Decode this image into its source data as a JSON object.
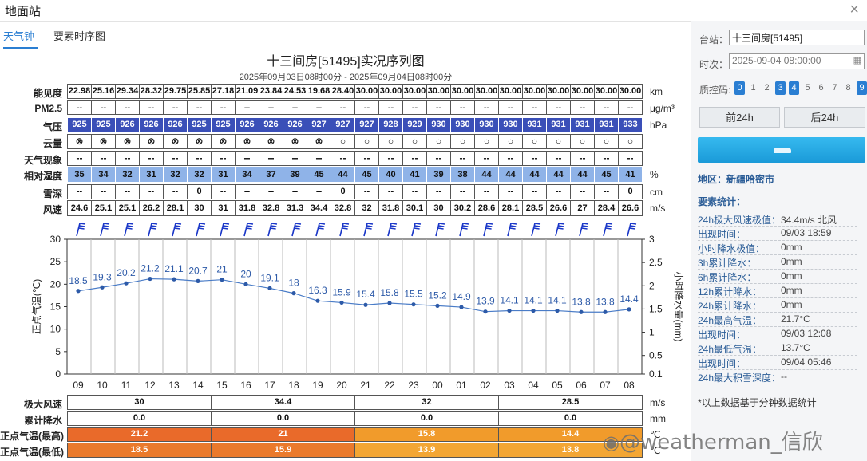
{
  "window": {
    "title": "地面站"
  },
  "tabs": [
    {
      "label": "天气钟"
    },
    {
      "label": "要素时序图"
    }
  ],
  "chart_title": "十三间房[51495]实况序列图",
  "chart_subtitle": "2025年09月03日08时00分 - 2025年09月04日08时00分",
  "table": {
    "visibility": {
      "label": "能见度",
      "unit": "km",
      "values": [
        "22.98",
        "25.16",
        "29.34",
        "28.32",
        "29.75",
        "25.85",
        "27.18",
        "21.09",
        "23.84",
        "24.53",
        "19.68",
        "28.40",
        "30.00",
        "30.00",
        "30.00",
        "30.00",
        "30.00",
        "30.00",
        "30.00",
        "30.00",
        "30.00",
        "30.00",
        "30.00",
        "30.00"
      ]
    },
    "pm25": {
      "label": "PM2.5",
      "unit": "μg/m³",
      "values": [
        "--",
        "--",
        "--",
        "--",
        "--",
        "--",
        "--",
        "--",
        "--",
        "--",
        "--",
        "--",
        "--",
        "--",
        "--",
        "--",
        "--",
        "--",
        "--",
        "--",
        "--",
        "--",
        "--",
        "--"
      ]
    },
    "pressure": {
      "label": "气压",
      "unit": "hPa",
      "values": [
        "925",
        "925",
        "926",
        "926",
        "926",
        "925",
        "925",
        "926",
        "926",
        "926",
        "927",
        "927",
        "927",
        "928",
        "929",
        "930",
        "930",
        "930",
        "930",
        "931",
        "931",
        "931",
        "931",
        "933"
      ]
    },
    "cloud": {
      "label": "云量",
      "unit": "",
      "values": [
        "⊗",
        "⊗",
        "⊗",
        "⊗",
        "⊗",
        "⊗",
        "⊗",
        "⊗",
        "⊗",
        "⊗",
        "⊗",
        "○",
        "○",
        "○",
        "○",
        "○",
        "○",
        "○",
        "○",
        "○",
        "○",
        "○",
        "○",
        "○"
      ]
    },
    "weather": {
      "label": "天气现象",
      "unit": "",
      "values": [
        "--",
        "--",
        "--",
        "--",
        "--",
        "--",
        "--",
        "--",
        "--",
        "--",
        "--",
        "--",
        "--",
        "--",
        "--",
        "--",
        "--",
        "--",
        "--",
        "--",
        "--",
        "--",
        "--",
        "--"
      ]
    },
    "humidity": {
      "label": "相对湿度",
      "unit": "%",
      "values": [
        "35",
        "34",
        "32",
        "31",
        "32",
        "32",
        "31",
        "34",
        "37",
        "39",
        "45",
        "44",
        "45",
        "40",
        "41",
        "39",
        "38",
        "44",
        "44",
        "44",
        "44",
        "44",
        "45",
        "41"
      ]
    },
    "snow": {
      "label": "雪深",
      "unit": "cm",
      "values": [
        "--",
        "--",
        "--",
        "--",
        "--",
        "0",
        "--",
        "--",
        "--",
        "--",
        "--",
        "0",
        "--",
        "--",
        "--",
        "--",
        "--",
        "--",
        "--",
        "--",
        "--",
        "--",
        "--",
        "0"
      ]
    },
    "wind": {
      "label": "风速",
      "unit": "m/s",
      "values": [
        "24.6",
        "25.1",
        "25.1",
        "26.2",
        "28.1",
        "30",
        "31",
        "31.8",
        "32.8",
        "31.3",
        "34.4",
        "32.8",
        "32",
        "31.8",
        "30.1",
        "30",
        "30.2",
        "28.6",
        "28.1",
        "28.5",
        "26.6",
        "27",
        "28.4",
        "26.6"
      ]
    }
  },
  "chart_data": {
    "type": "line",
    "x": [
      "09",
      "10",
      "11",
      "12",
      "13",
      "14",
      "15",
      "16",
      "17",
      "18",
      "19",
      "20",
      "21",
      "22",
      "23",
      "00",
      "01",
      "02",
      "03",
      "04",
      "05",
      "06",
      "07",
      "08"
    ],
    "series": [
      {
        "values": [
          18.5,
          19.3,
          20.2,
          21.2,
          21.1,
          20.7,
          21,
          20,
          19.1,
          18,
          16.3,
          15.9,
          15.4,
          15.8,
          15.5,
          15.2,
          14.9,
          13.9,
          14.1,
          14.1,
          14.1,
          13.8,
          13.8,
          14.4
        ]
      }
    ],
    "ylabel": "正点气温(℃)",
    "ylim": [
      0,
      30
    ],
    "yticks": [
      "30",
      "25",
      "20",
      "15",
      "10",
      "5",
      "0"
    ],
    "y2label": "小时降水量(mm)",
    "y2lim": [
      0.1,
      3
    ],
    "y2ticks": [
      "3",
      "2.5",
      "2",
      "1.5",
      "1",
      "0.5",
      "0.1"
    ],
    "wind_barbs": true,
    "grid": true,
    "color": "#4a7cc7"
  },
  "summary": {
    "gust": {
      "label": "极大风速",
      "unit": "m/s",
      "values": [
        "30",
        "34.4",
        "32",
        "28.5"
      ]
    },
    "precip": {
      "label": "累计降水",
      "unit": "mm",
      "values": [
        "0.0",
        "0.0",
        "0.0",
        "0.0"
      ]
    },
    "tmax": {
      "label": "正点气温(最高)",
      "unit": "℃",
      "values": [
        "21.2",
        "21",
        "15.8",
        "14.4"
      ]
    },
    "tmin": {
      "label": "正点气温(最低)",
      "unit": "℃",
      "values": [
        "18.5",
        "15.9",
        "13.9",
        "13.8"
      ]
    }
  },
  "sidebar": {
    "station_label": "台站：",
    "station_value": "十三间房[51495]",
    "time_label": "时次：",
    "time_value": "2025-09-04 08:00:00",
    "qc_label": "质控码:",
    "qc_codes": [
      "0",
      "1",
      "2",
      "3",
      "4",
      "5",
      "6",
      "7",
      "8",
      "9"
    ],
    "qc_selected": [
      "0",
      "3",
      "4",
      "9"
    ],
    "prev_label": "前24h",
    "next_label": "后24h",
    "region": "地区：新疆哈密市",
    "stats_title": "要素统计：",
    "stats": [
      {
        "label": "24h极大风速极值：",
        "value": "34.4m/s 北风"
      },
      {
        "label": "出现时间：",
        "value": "09/03 18:59"
      },
      {
        "label": "小时降水极值：",
        "value": "0mm"
      },
      {
        "label": "3h累计降水：",
        "value": "0mm"
      },
      {
        "label": "6h累计降水：",
        "value": "0mm"
      },
      {
        "label": "12h累计降水：",
        "value": "0mm"
      },
      {
        "label": "24h累计降水：",
        "value": "0mm"
      },
      {
        "label": "24h最高气温：",
        "value": "21.7°C"
      },
      {
        "label": "出现时间：",
        "value": "09/03 12:08"
      },
      {
        "label": "24h最低气温：",
        "value": "13.7°C"
      },
      {
        "label": "出现时间：",
        "value": "09/04 05:46"
      },
      {
        "label": "24h最大积雪深度：",
        "value": "--"
      }
    ],
    "footnote": "*以上数据基于分钟数据统计"
  },
  "watermark": "@weatherman_信欣",
  "colors": {
    "accent": "#2a7ed2",
    "pressure": "#3a4fb8",
    "humidity": "#8fb3e8",
    "tmax": "#e96a2a",
    "tmax_late": "#f19b2b",
    "tmin": "#ea7a2c",
    "tmin_late": "#f3a634"
  }
}
